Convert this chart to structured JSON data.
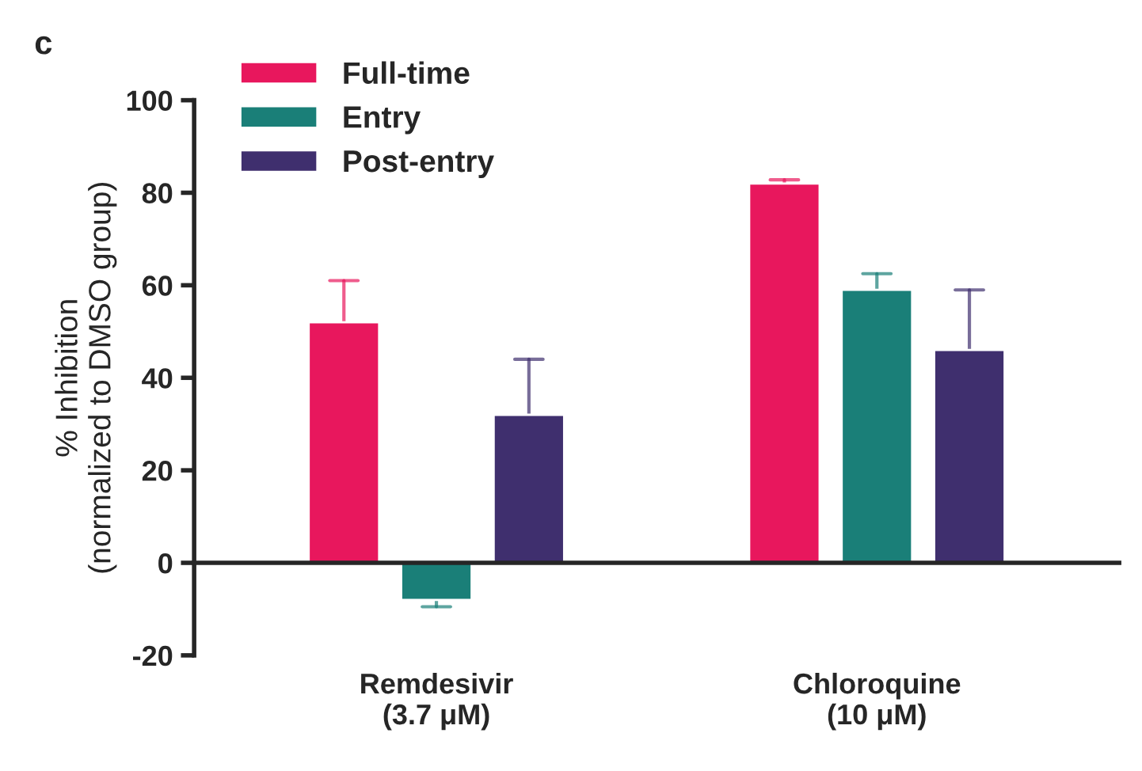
{
  "chart_data": {
    "type": "bar",
    "title": "c",
    "ylabel": "% Inhibition\n(normalized to DMSO group)",
    "categories": [
      "Remdesivir\n(3.7 μM)",
      "Chloroquine\n(10 μM)"
    ],
    "series": [
      {
        "name": "Full-time",
        "color": "#e8175d",
        "values": [
          52,
          82
        ],
        "errors": [
          [
            52,
            61
          ],
          [
            82,
            82.8
          ]
        ]
      },
      {
        "name": "Entry",
        "color": "#1a7f78",
        "values": [
          -8,
          59
        ],
        "errors": [
          [
            -9.5,
            -8
          ],
          [
            59,
            62.5
          ]
        ]
      },
      {
        "name": "Post-entry",
        "color": "#3f2f6e",
        "values": [
          32,
          46
        ],
        "errors": [
          [
            32,
            44
          ],
          [
            46,
            59
          ]
        ]
      }
    ],
    "ylim": [
      -20,
      100
    ],
    "yticks": [
      -20,
      0,
      20,
      40,
      60,
      80,
      100
    ],
    "legend": "top left"
  }
}
